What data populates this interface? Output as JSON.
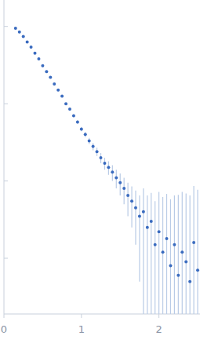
{
  "chart_data": {
    "type": "scatter",
    "log": "y",
    "tick_labels": "x",
    "color": "#3a6bbf",
    "marker": "circle",
    "xlim": [
      0,
      2.53
    ],
    "xticks": [
      0,
      1,
      2
    ],
    "ylim": [
      0.00019,
      2.2
    ],
    "yticks": [
      1,
      0.1,
      0.01,
      0.001
    ],
    "x": [
      0.15,
      0.2,
      0.25,
      0.3,
      0.35,
      0.4,
      0.45,
      0.5,
      0.55,
      0.6,
      0.65,
      0.7,
      0.75,
      0.8,
      0.85,
      0.9,
      0.95,
      1.0,
      1.05,
      1.1,
      1.15,
      1.2,
      1.25,
      1.3,
      1.35,
      1.4,
      1.45,
      1.5,
      1.55,
      1.6,
      1.65,
      1.7,
      1.75,
      1.8,
      1.85,
      1.9,
      1.95,
      2.0,
      2.05,
      2.1,
      2.15,
      2.2,
      2.25,
      2.3,
      2.35,
      2.4,
      2.45,
      2.5
    ],
    "values": [
      0.95,
      0.85,
      0.74,
      0.63,
      0.54,
      0.45,
      0.38,
      0.31,
      0.26,
      0.22,
      0.18,
      0.15,
      0.125,
      0.1,
      0.085,
      0.07,
      0.058,
      0.047,
      0.04,
      0.033,
      0.028,
      0.024,
      0.02,
      0.017,
      0.015,
      0.013,
      0.011,
      0.0095,
      0.008,
      0.0065,
      0.0055,
      0.0045,
      0.0035,
      0.004,
      0.0025,
      0.003,
      0.0015,
      0.0022,
      0.0012,
      0.0018,
      0.0008,
      0.0015,
      0.0006,
      0.0012,
      0.0009,
      0.0005,
      0.0016,
      0.0007
    ],
    "errors": [
      0.01,
      0.01,
      0.01,
      0.01,
      0.01,
      0.01,
      0.008,
      0.007,
      0.006,
      0.005,
      0.004,
      0.004,
      0.003,
      0.003,
      0.003,
      0.003,
      0.003,
      0.003,
      0.003,
      0.003,
      0.003,
      0.003,
      0.003,
      0.003,
      0.003,
      0.003,
      0.003,
      0.003,
      0.003,
      0.003,
      0.003,
      0.003,
      0.003,
      0.004,
      0.004,
      0.004,
      0.004,
      0.005,
      0.005,
      0.005,
      0.005,
      0.005,
      0.006,
      0.006,
      0.006,
      0.006,
      0.007,
      0.007
    ]
  }
}
